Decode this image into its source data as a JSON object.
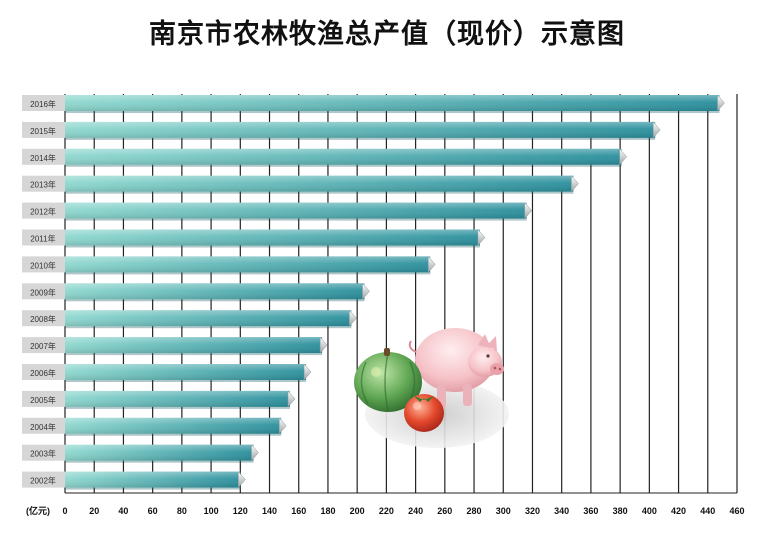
{
  "chart_data": {
    "type": "bar",
    "orientation": "horizontal",
    "title": "南京市农林牧渔总产值（现价）示意图",
    "xlabel": "(亿元)",
    "categories": [
      "2016年",
      "2015年",
      "2014年",
      "2013年",
      "2012年",
      "2011年",
      "2010年",
      "2009年",
      "2008年",
      "2007年",
      "2006年",
      "2005年",
      "2004年",
      "2003年",
      "2002年"
    ],
    "values": [
      448,
      404,
      381,
      348,
      316,
      284,
      250,
      205,
      196,
      176,
      165,
      154,
      148,
      129,
      120
    ],
    "xlim": [
      0,
      460
    ],
    "xticks": [
      0,
      20,
      40,
      60,
      80,
      100,
      120,
      140,
      160,
      180,
      200,
      220,
      240,
      260,
      280,
      300,
      320,
      340,
      360,
      380,
      400,
      420,
      440,
      460
    ],
    "grid": true,
    "colors": {
      "bar_start": "#8fd8cf",
      "bar_end": "#2a8f9c",
      "label_bg": "#d6d6d6"
    }
  },
  "illustration": {
    "subjects": [
      "pumpkin",
      "tomato",
      "pig"
    ]
  }
}
